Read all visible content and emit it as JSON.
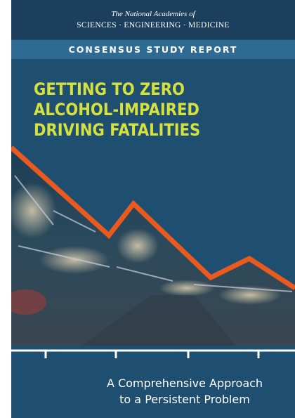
{
  "header": {
    "publisher_line1": "The National Academies of",
    "publisher_line2": "SCIENCES · ENGINEERING · MEDICINE",
    "series": "CONSENSUS STUDY REPORT"
  },
  "title": {
    "lines": [
      "GETTING TO ZERO",
      "ALCOHOL-IMPAIRED",
      "DRIVING FATALITIES"
    ]
  },
  "subtitle": {
    "lines": [
      "A Comprehensive Approach",
      "to a Persistent Problem"
    ]
  }
}
